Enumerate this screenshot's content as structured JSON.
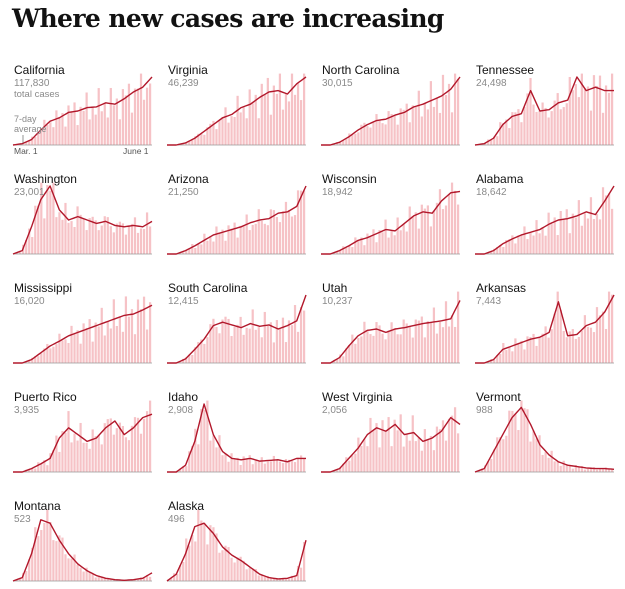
{
  "title": "Where new cases are increasing",
  "colors": {
    "line": "#b2182b",
    "bar": "#f6c2c6",
    "baseline": "#999999"
  },
  "annotations": {
    "total_label": "total cases",
    "avg_label": "7-day\naverage",
    "x_start": "Mar. 1",
    "x_end": "June 1"
  },
  "chart_data": {
    "type": "bar",
    "title": "Where new cases are increasing",
    "x_range": [
      "Mar. 1",
      "June 1"
    ],
    "series_kind": "daily new cases (bars) with 7-day average (line)",
    "panels": [
      {
        "name": "California",
        "total": "117,830",
        "avg_shape": [
          0,
          0.02,
          0.08,
          0.22,
          0.35,
          0.4,
          0.48,
          0.5,
          0.55,
          0.56,
          0.62,
          0.6,
          0.68,
          0.78,
          0.85,
          1.0
        ]
      },
      {
        "name": "Virginia",
        "total": "46,239",
        "avg_shape": [
          0,
          0,
          0.03,
          0.1,
          0.2,
          0.3,
          0.4,
          0.45,
          0.55,
          0.6,
          0.7,
          0.78,
          0.8,
          0.75,
          0.9,
          1.0
        ]
      },
      {
        "name": "North Carolina",
        "total": "30,015",
        "avg_shape": [
          0,
          0,
          0.04,
          0.12,
          0.22,
          0.3,
          0.36,
          0.38,
          0.44,
          0.48,
          0.56,
          0.6,
          0.66,
          0.72,
          0.82,
          1.0
        ]
      },
      {
        "name": "Tennessee",
        "total": "24,498",
        "avg_shape": [
          0,
          0.02,
          0.1,
          0.3,
          0.42,
          0.46,
          0.8,
          0.5,
          0.52,
          0.62,
          0.66,
          1.0,
          0.8,
          0.85,
          0.8,
          0.8
        ]
      },
      {
        "name": "Washington",
        "total": "23,001",
        "avg_shape": [
          0,
          0.05,
          0.4,
          0.8,
          1.0,
          0.65,
          0.5,
          0.55,
          0.5,
          0.45,
          0.48,
          0.42,
          0.4,
          0.42,
          0.4,
          0.48
        ]
      },
      {
        "name": "Arizona",
        "total": "21,250",
        "avg_shape": [
          0,
          0,
          0.05,
          0.12,
          0.2,
          0.28,
          0.32,
          0.36,
          0.4,
          0.46,
          0.5,
          0.52,
          0.6,
          0.62,
          0.7,
          1.0
        ]
      },
      {
        "name": "Wisconsin",
        "total": "18,942",
        "avg_shape": [
          0,
          0,
          0.05,
          0.12,
          0.2,
          0.24,
          0.3,
          0.36,
          0.34,
          0.45,
          0.56,
          0.62,
          0.6,
          0.78,
          0.9,
          0.92
        ]
      },
      {
        "name": "Alabama",
        "total": "18,642",
        "avg_shape": [
          0,
          0,
          0.05,
          0.15,
          0.22,
          0.28,
          0.32,
          0.36,
          0.44,
          0.5,
          0.52,
          0.56,
          0.62,
          0.58,
          0.78,
          1.0
        ]
      },
      {
        "name": "Mississippi",
        "total": "16,020",
        "avg_shape": [
          0,
          0,
          0.05,
          0.15,
          0.25,
          0.32,
          0.4,
          0.45,
          0.5,
          0.55,
          0.6,
          0.65,
          0.7,
          0.72,
          0.78,
          0.85
        ]
      },
      {
        "name": "South Carolina",
        "total": "12,415",
        "avg_shape": [
          0,
          0,
          0.06,
          0.2,
          0.35,
          0.55,
          0.6,
          0.56,
          0.52,
          0.58,
          0.54,
          0.56,
          0.5,
          0.55,
          0.62,
          1.0
        ]
      },
      {
        "name": "Utah",
        "total": "10,237",
        "avg_shape": [
          0,
          0,
          0.08,
          0.25,
          0.4,
          0.48,
          0.5,
          0.45,
          0.5,
          0.52,
          0.55,
          0.58,
          0.6,
          0.62,
          0.65,
          0.92
        ]
      },
      {
        "name": "Arkansas",
        "total": "7,443",
        "avg_shape": [
          0,
          0,
          0.05,
          0.2,
          0.25,
          0.3,
          0.35,
          0.38,
          0.45,
          0.9,
          0.4,
          0.42,
          0.55,
          0.6,
          0.75,
          1.0
        ]
      },
      {
        "name": "Puerto Rico",
        "total": "3,935",
        "avg_shape": [
          0,
          0,
          0.05,
          0.12,
          0.2,
          0.5,
          0.65,
          0.55,
          0.45,
          0.5,
          0.65,
          0.75,
          0.55,
          0.65,
          0.8,
          0.85
        ]
      },
      {
        "name": "Idaho",
        "total": "2,908",
        "avg_shape": [
          0,
          0,
          0.1,
          0.45,
          1.0,
          0.55,
          0.3,
          0.2,
          0.18,
          0.2,
          0.16,
          0.17,
          0.18,
          0.15,
          0.2,
          0.2
        ]
      },
      {
        "name": "West Virginia",
        "total": "2,056",
        "avg_shape": [
          0,
          0,
          0.05,
          0.2,
          0.35,
          0.55,
          0.65,
          0.6,
          0.7,
          0.55,
          0.58,
          0.45,
          0.5,
          0.6,
          0.8,
          0.7
        ]
      },
      {
        "name": "Vermont",
        "total": "988",
        "avg_shape": [
          0,
          0.05,
          0.3,
          0.55,
          0.8,
          0.95,
          0.7,
          0.4,
          0.25,
          0.15,
          0.1,
          0.08,
          0.06,
          0.05,
          0.05,
          0.04
        ]
      },
      {
        "name": "Montana",
        "total": "523",
        "avg_shape": [
          0,
          0.05,
          0.4,
          0.9,
          0.85,
          0.6,
          0.4,
          0.25,
          0.15,
          0.08,
          0.04,
          0.02,
          0.01,
          0.02,
          0.04,
          0.12
        ]
      },
      {
        "name": "Alaska",
        "total": "496",
        "avg_shape": [
          0,
          0.1,
          0.4,
          0.8,
          0.85,
          0.7,
          0.5,
          0.38,
          0.3,
          0.2,
          0.1,
          0.05,
          0.03,
          0.04,
          0.08,
          0.6
        ]
      }
    ]
  }
}
